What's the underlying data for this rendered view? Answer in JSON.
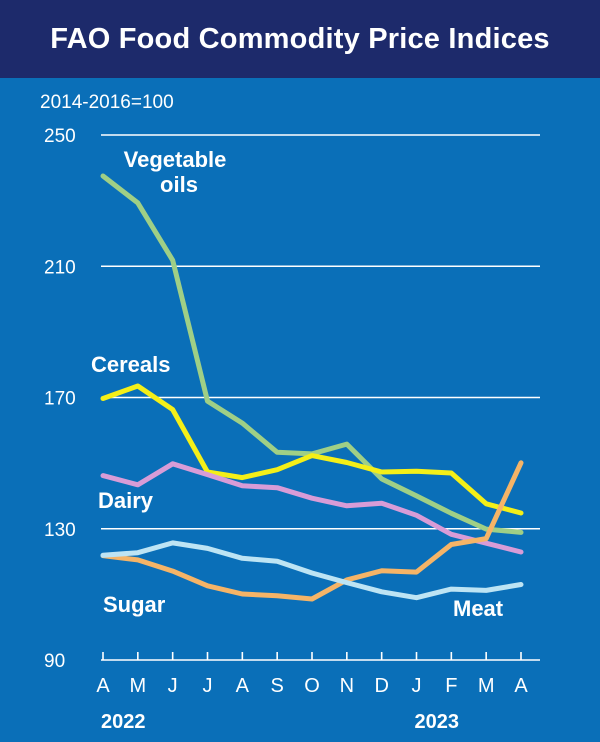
{
  "header": {
    "title": "FAO Food Commodity Price Indices"
  },
  "chart_data": {
    "type": "line",
    "subtitle": "2014-2016=100",
    "categories": [
      "A",
      "M",
      "J",
      "J",
      "A",
      "S",
      "O",
      "N",
      "D",
      "J",
      "F",
      "M",
      "A"
    ],
    "year_labels": [
      "2022",
      "2023"
    ],
    "ylim": [
      90,
      250
    ],
    "yticks": [
      90,
      130,
      170,
      210,
      250
    ],
    "grid": true,
    "series": [
      {
        "name": "Vegetable oils",
        "label_lines": [
          "Vegetable",
          "oils"
        ],
        "color": "#9fcf86",
        "values": [
          237.5,
          229.3,
          211.8,
          168.9,
          162.2,
          153.3,
          152.8,
          155.8,
          145.2,
          140.0,
          134.7,
          129.9,
          128.9
        ]
      },
      {
        "name": "Cereals",
        "label_lines": [
          "Cereals"
        ],
        "color": "#f4ef18",
        "values": [
          169.7,
          173.5,
          166.3,
          147.3,
          145.6,
          148.0,
          152.3,
          150.2,
          147.3,
          147.5,
          147.0,
          137.6,
          134.8
        ]
      },
      {
        "name": "Dairy",
        "label_lines": [
          "Dairy"
        ],
        "color": "#d89cd7",
        "values": [
          146.2,
          143.4,
          149.8,
          146.5,
          143.1,
          142.5,
          139.3,
          137.0,
          137.8,
          134.1,
          128.3,
          125.6,
          122.9
        ]
      },
      {
        "name": "Sugar",
        "label_lines": [
          "Sugar"
        ],
        "color": "#f5b467",
        "values": [
          121.8,
          120.5,
          117.1,
          112.6,
          110.1,
          109.6,
          108.6,
          114.4,
          117.2,
          116.8,
          125.2,
          127.0,
          150.1
        ]
      },
      {
        "name": "Meat",
        "label_lines": [
          "Meat"
        ],
        "color": "#bde4f4",
        "values": [
          121.9,
          122.7,
          125.7,
          124.0,
          121.0,
          120.1,
          116.5,
          113.6,
          110.8,
          109.0,
          111.6,
          111.2,
          113.0
        ]
      }
    ]
  }
}
